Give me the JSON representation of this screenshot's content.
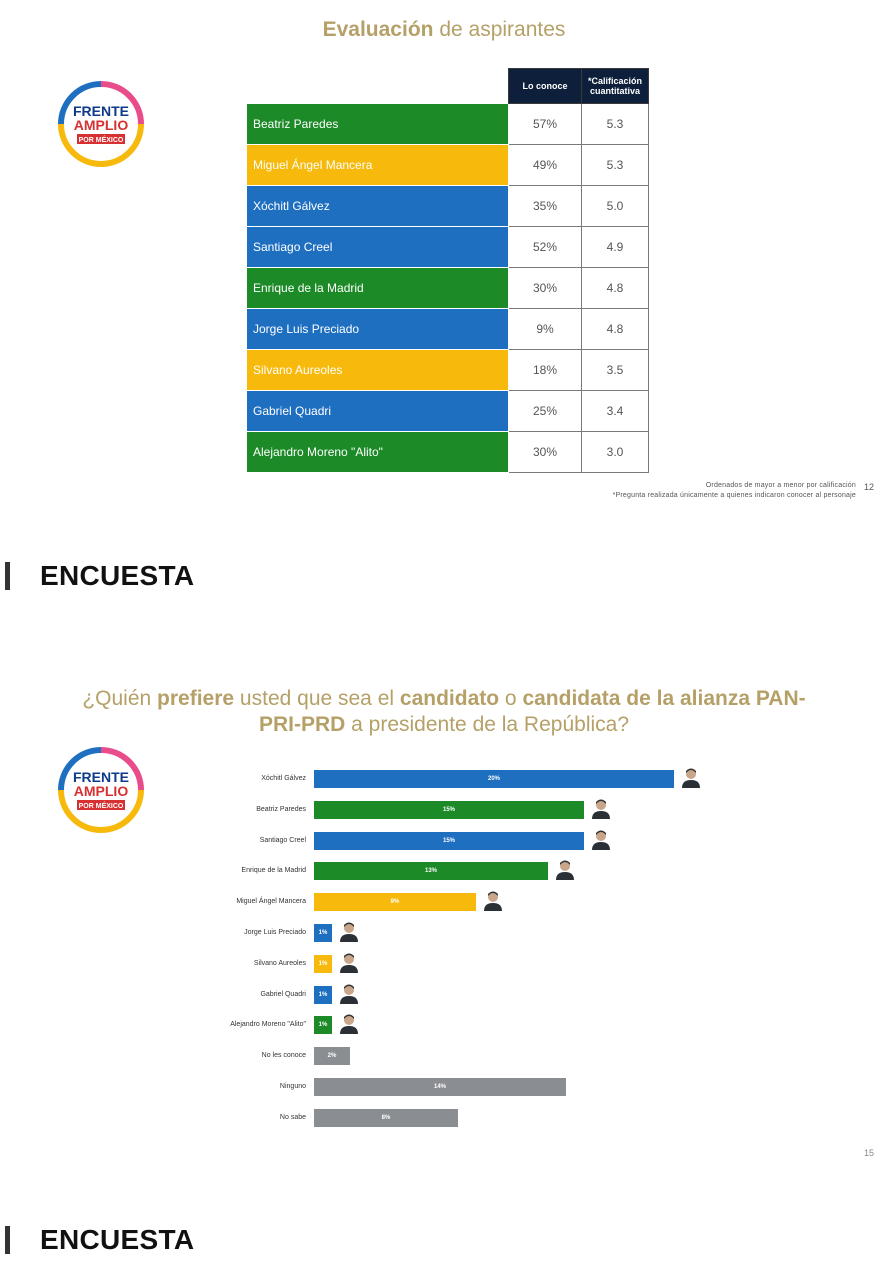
{
  "colors": {
    "blue": "#1f6fc1",
    "green": "#1b8a27",
    "yellow": "#f7b90b",
    "gray": "#8a8d91",
    "header": "#0d1f3a",
    "gold": "#b5a067"
  },
  "slide1": {
    "title_bold": "Evaluación",
    "title_rest": " de aspirantes",
    "logo": {
      "line1": "FRENTE",
      "line2": "AMPLIO",
      "line3": "POR MÉXICO"
    },
    "columns": {
      "knows": "Lo conoce",
      "score": "*Calificación cuantitativa"
    },
    "rows": [
      {
        "name": "Beatriz Paredes",
        "knows": "57%",
        "score": "5.3",
        "color": "green"
      },
      {
        "name": "Miguel Ángel Mancera",
        "knows": "49%",
        "score": "5.3",
        "color": "yellow"
      },
      {
        "name": "Xóchitl Gálvez",
        "knows": "35%",
        "score": "5.0",
        "color": "blue"
      },
      {
        "name": "Santiago Creel",
        "knows": "52%",
        "score": "4.9",
        "color": "blue"
      },
      {
        "name": "Enrique de la Madrid",
        "knows": "30%",
        "score": "4.8",
        "color": "green"
      },
      {
        "name": "Jorge Luis Preciado",
        "knows": "9%",
        "score": "4.8",
        "color": "blue"
      },
      {
        "name": "Silvano Aureoles",
        "knows": "18%",
        "score": "3.5",
        "color": "yellow"
      },
      {
        "name": "Gabriel Quadri",
        "knows": "25%",
        "score": "3.4",
        "color": "blue"
      },
      {
        "name": "Alejandro Moreno \"Alito\"",
        "knows": "30%",
        "score": "3.0",
        "color": "green"
      }
    ],
    "footnote1": "Ordenados de mayor a menor por calificación",
    "footnote2": "*Pregunta realizada únicamente a quienes indicaron conocer al personaje",
    "page": "12"
  },
  "section1": "ENCUESTA",
  "slide2": {
    "title_parts": {
      "p1": "¿Quién ",
      "b1": "prefiere",
      "p2": " usted que sea el ",
      "b2": "candidato",
      "p3": " o ",
      "b3": "candidata de la alianza PAN-",
      "b4": "PRI-PRD",
      "p4": " a presidente de la República?"
    },
    "logo": {
      "line1": "FRENTE",
      "line2": "AMPLIO",
      "line3": "POR MÉXICO"
    },
    "page": "15"
  },
  "section2": "ENCUESTA",
  "chart_data": {
    "type": "bar",
    "orientation": "horizontal",
    "title": "¿Quién prefiere usted que sea el candidato o candidata de la alianza PAN-PRI-PRD a presidente de la República?",
    "categories": [
      "Xóchitl Gálvez",
      "Beatriz Paredes",
      "Santiago Creel",
      "Enrique de la Madrid",
      "Miguel Ángel Mancera",
      "Jorge Luis Preciado",
      "Silvano Aureoles",
      "Gabriel Quadri",
      "Alejandro Moreno \"Alito\"",
      "No les conoce",
      "Ninguno",
      "No sabe"
    ],
    "values": [
      20,
      15,
      15,
      13,
      9,
      1,
      1,
      1,
      1,
      2,
      14,
      8
    ],
    "labels": [
      "20%",
      "15%",
      "15%",
      "13%",
      "9%",
      "1%",
      "1%",
      "1%",
      "1%",
      "2%",
      "14%",
      "8%"
    ],
    "bar_colors": [
      "blue",
      "green",
      "blue",
      "green",
      "yellow",
      "blue",
      "yellow",
      "blue",
      "green",
      "gray",
      "gray",
      "gray"
    ],
    "has_photo": [
      true,
      true,
      true,
      true,
      true,
      true,
      true,
      true,
      true,
      false,
      false,
      false
    ],
    "xlabel": "",
    "ylabel": "",
    "grid": false,
    "legend": "none"
  }
}
